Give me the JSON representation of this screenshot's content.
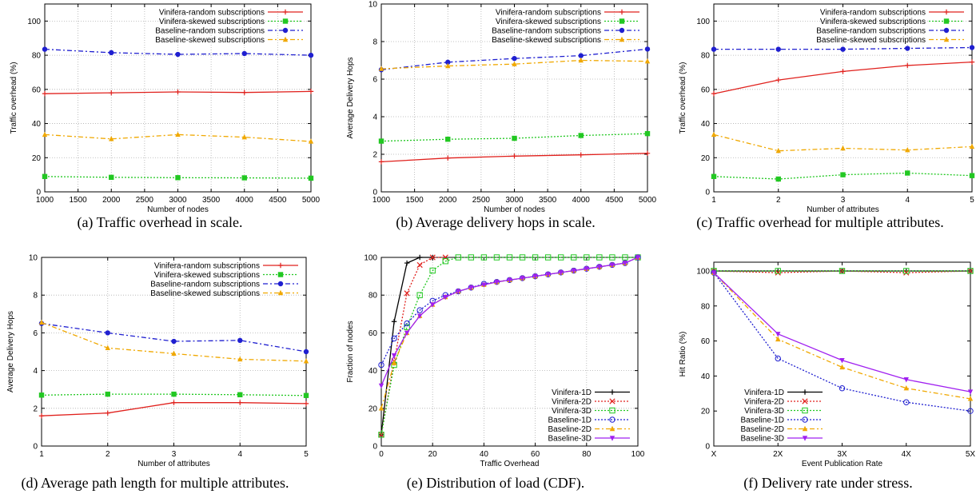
{
  "chart_data": [
    {
      "id": "a",
      "type": "line",
      "caption": "(a) Traffic overhead in scale.",
      "xlabel": "Number of nodes",
      "ylabel": "Traffic overhead (%)",
      "xlim": [
        1000,
        5000
      ],
      "ylim": [
        0,
        110
      ],
      "xticks": [
        1000,
        1500,
        2000,
        2500,
        3000,
        3500,
        4000,
        4500,
        5000
      ],
      "yticks": [
        0,
        20,
        40,
        60,
        80,
        100
      ],
      "xtick_labels": [
        "1000",
        "1500",
        "2000",
        "2500",
        "3000",
        "3500",
        "4000",
        "4500",
        "5000"
      ],
      "ytick_labels": [
        "0",
        "20",
        "40",
        "60",
        "80",
        "100"
      ],
      "grid": true,
      "legend": "top-right",
      "series": [
        {
          "name": "Vinifera-random subscriptions",
          "color": "#e0201c",
          "dash": "",
          "marker": "plus",
          "x": [
            1000,
            2000,
            3000,
            4000,
            5000
          ],
          "y": [
            57.5,
            58.0,
            58.5,
            58.2,
            58.8
          ]
        },
        {
          "name": "Vinifera-skewed subscriptions",
          "color": "#22c822",
          "dash": "2,2",
          "marker": "square",
          "x": [
            1000,
            2000,
            3000,
            4000,
            5000
          ],
          "y": [
            9.0,
            8.5,
            8.3,
            8.2,
            8.0
          ]
        },
        {
          "name": "Baseline-random subscriptions",
          "color": "#1f1fd0",
          "dash": "6,3,2,3",
          "marker": "circle",
          "x": [
            1000,
            2000,
            3000,
            4000,
            5000
          ],
          "y": [
            83.5,
            81.5,
            80.5,
            81.0,
            80.0
          ]
        },
        {
          "name": "Baseline-skewed subscriptions",
          "color": "#f0a800",
          "dash": "6,3,2,3",
          "marker": "triangle",
          "x": [
            1000,
            2000,
            3000,
            4000,
            5000
          ],
          "y": [
            33.5,
            31.0,
            33.5,
            32.0,
            29.5
          ]
        }
      ]
    },
    {
      "id": "b",
      "type": "line",
      "caption": "(b) Average delivery hops in scale.",
      "xlabel": "Number of nodes",
      "ylabel": "Average Delivery Hops",
      "xlim": [
        1000,
        5000
      ],
      "ylim": [
        0,
        10
      ],
      "xticks": [
        1000,
        1500,
        2000,
        2500,
        3000,
        3500,
        4000,
        4500,
        5000
      ],
      "yticks": [
        0,
        2,
        4,
        6,
        8,
        10
      ],
      "xtick_labels": [
        "1000",
        "1500",
        "2000",
        "2500",
        "3000",
        "3500",
        "4000",
        "4500",
        "5000"
      ],
      "ytick_labels": [
        "0",
        "2",
        "4",
        "6",
        "8",
        "10"
      ],
      "grid": true,
      "legend": "top-right",
      "series": [
        {
          "name": "Vinifera-random subscriptions",
          "color": "#e0201c",
          "dash": "",
          "marker": "plus",
          "x": [
            1000,
            2000,
            3000,
            4000,
            5000
          ],
          "y": [
            1.6,
            1.8,
            1.9,
            1.97,
            2.05
          ]
        },
        {
          "name": "Vinifera-skewed subscriptions",
          "color": "#22c822",
          "dash": "2,2",
          "marker": "square",
          "x": [
            1000,
            2000,
            3000,
            4000,
            5000
          ],
          "y": [
            2.7,
            2.8,
            2.85,
            3.0,
            3.1
          ]
        },
        {
          "name": "Baseline-random subscriptions",
          "color": "#1f1fd0",
          "dash": "6,3,2,3",
          "marker": "circle",
          "x": [
            1000,
            2000,
            3000,
            4000,
            5000
          ],
          "y": [
            6.5,
            6.9,
            7.1,
            7.25,
            7.6
          ]
        },
        {
          "name": "Baseline-skewed subscriptions",
          "color": "#f0a800",
          "dash": "6,3,2,3",
          "marker": "triangle",
          "x": [
            1000,
            2000,
            3000,
            4000,
            5000
          ],
          "y": [
            6.55,
            6.7,
            6.8,
            7.0,
            6.95
          ]
        }
      ]
    },
    {
      "id": "c",
      "type": "line",
      "caption": "(c) Traffic overhead for multiple attributes.",
      "xlabel": "Number of attributes",
      "ylabel": "Traffic overhead (%)",
      "xlim": [
        1,
        5
      ],
      "ylim": [
        0,
        110
      ],
      "xticks": [
        1,
        2,
        3,
        4,
        5
      ],
      "yticks": [
        0,
        20,
        40,
        60,
        80,
        100
      ],
      "xtick_labels": [
        "1",
        "2",
        "3",
        "4",
        "5"
      ],
      "ytick_labels": [
        "0",
        "20",
        "40",
        "60",
        "80",
        "100"
      ],
      "grid": true,
      "legend": "top-right",
      "series": [
        {
          "name": "Vinifera-random subscriptions",
          "color": "#e0201c",
          "dash": "",
          "marker": "plus",
          "x": [
            1,
            2,
            3,
            4,
            5
          ],
          "y": [
            57.5,
            65.5,
            70.5,
            74.0,
            76.0
          ]
        },
        {
          "name": "Vinifera-skewed subscriptions",
          "color": "#22c822",
          "dash": "2,2",
          "marker": "square",
          "x": [
            1,
            2,
            3,
            4,
            5
          ],
          "y": [
            9.0,
            7.5,
            10.0,
            11.0,
            9.5
          ]
        },
        {
          "name": "Baseline-random subscriptions",
          "color": "#1f1fd0",
          "dash": "6,3,2,3",
          "marker": "circle",
          "x": [
            1,
            2,
            3,
            4,
            5
          ],
          "y": [
            83.5,
            83.5,
            83.5,
            84.0,
            84.5
          ]
        },
        {
          "name": "Baseline-skewed subscriptions",
          "color": "#f0a800",
          "dash": "6,3,2,3",
          "marker": "triangle",
          "x": [
            1,
            2,
            3,
            4,
            5
          ],
          "y": [
            33.5,
            24.0,
            25.5,
            24.5,
            26.5
          ]
        }
      ]
    },
    {
      "id": "d",
      "type": "line",
      "caption": "(d) Average path length for multiple attributes.",
      "xlabel": "Number of attributes",
      "ylabel": "Average Delivery Hops",
      "xlim": [
        1,
        5
      ],
      "ylim": [
        0,
        10
      ],
      "xticks": [
        1,
        2,
        3,
        4,
        5
      ],
      "yticks": [
        0,
        2,
        4,
        6,
        8,
        10
      ],
      "xtick_labels": [
        "1",
        "2",
        "3",
        "4",
        "5"
      ],
      "ytick_labels": [
        "0",
        "2",
        "4",
        "6",
        "8",
        "10"
      ],
      "grid": true,
      "legend": "top-right",
      "series": [
        {
          "name": "Vinifera-random subscriptions",
          "color": "#e0201c",
          "dash": "",
          "marker": "plus",
          "x": [
            1,
            2,
            3,
            4,
            5
          ],
          "y": [
            1.6,
            1.75,
            2.3,
            2.3,
            2.25
          ]
        },
        {
          "name": "Vinifera-skewed subscriptions",
          "color": "#22c822",
          "dash": "2,2",
          "marker": "square",
          "x": [
            1,
            2,
            3,
            4,
            5
          ],
          "y": [
            2.7,
            2.75,
            2.75,
            2.72,
            2.68
          ]
        },
        {
          "name": "Baseline-random subscriptions",
          "color": "#1f1fd0",
          "dash": "6,3,2,3",
          "marker": "circle",
          "x": [
            1,
            2,
            3,
            4,
            5
          ],
          "y": [
            6.5,
            6.0,
            5.55,
            5.6,
            5.0
          ]
        },
        {
          "name": "Baseline-skewed subscriptions",
          "color": "#f0a800",
          "dash": "6,3,2,3",
          "marker": "triangle",
          "x": [
            1,
            2,
            3,
            4,
            5
          ],
          "y": [
            6.55,
            5.2,
            4.9,
            4.6,
            4.5
          ]
        }
      ]
    },
    {
      "id": "e",
      "type": "line",
      "caption": "(e) Distribution of load (CDF).",
      "xlabel": "Traffic Overhead",
      "ylabel": "Fraction of nodes",
      "xlim": [
        0,
        100
      ],
      "ylim": [
        0,
        100
      ],
      "xticks": [
        0,
        20,
        40,
        60,
        80,
        100
      ],
      "yticks": [
        0,
        20,
        40,
        60,
        80,
        100
      ],
      "xtick_labels": [
        "0",
        "20",
        "40",
        "60",
        "80",
        "100"
      ],
      "ytick_labels": [
        "0",
        "20",
        "40",
        "60",
        "80",
        "100"
      ],
      "grid": true,
      "legend": "bottom-right",
      "series": [
        {
          "name": "Vinifera-1D",
          "color": "#000000",
          "dash": "",
          "marker": "plus",
          "x": [
            0,
            5,
            10,
            15,
            20
          ],
          "y": [
            6,
            66,
            97,
            100,
            100
          ]
        },
        {
          "name": "Vinifera-2D",
          "color": "#e0201c",
          "dash": "2,2",
          "marker": "cross",
          "x": [
            0,
            5,
            10,
            15,
            20,
            25
          ],
          "y": [
            6,
            45,
            81,
            96,
            100,
            100
          ]
        },
        {
          "name": "Vinifera-3D",
          "color": "#22c822",
          "dash": "2,2",
          "marker": "hollow-square",
          "x": [
            0,
            5,
            10,
            15,
            20,
            25,
            30,
            35,
            40,
            45,
            50,
            55,
            60,
            65,
            70,
            75,
            80,
            85,
            90,
            95,
            100
          ],
          "y": [
            6,
            43,
            63,
            80,
            93,
            98,
            100,
            100,
            100,
            100,
            100,
            100,
            100,
            100,
            100,
            100,
            100,
            100,
            100,
            100,
            100
          ]
        },
        {
          "name": "Baseline-1D",
          "color": "#1f1fd0",
          "dash": "2,2",
          "marker": "circle-open",
          "x": [
            0,
            5,
            10,
            15,
            20,
            25,
            30,
            35,
            40,
            45,
            50,
            55,
            60,
            65,
            70,
            75,
            80,
            85,
            90,
            95,
            100
          ],
          "y": [
            43,
            57,
            65,
            72,
            77,
            80,
            82,
            84,
            86,
            87,
            88,
            89,
            90,
            91,
            92,
            93,
            94,
            95,
            96,
            97,
            100
          ]
        },
        {
          "name": "Baseline-2D",
          "color": "#f0a800",
          "dash": "6,3,2,3",
          "marker": "triangle",
          "x": [
            0,
            5,
            10,
            15,
            20,
            25,
            30,
            35,
            40,
            45,
            50,
            55,
            60,
            65,
            70,
            75,
            80,
            85,
            90,
            95,
            100
          ],
          "y": [
            20,
            44,
            60,
            69,
            75,
            79,
            82,
            84,
            85.5,
            87,
            88,
            89,
            90,
            91,
            92,
            93,
            94,
            95,
            96,
            97,
            100
          ]
        },
        {
          "name": "Baseline-3D",
          "color": "#a020f0",
          "dash": "",
          "marker": "triangle-down",
          "x": [
            0,
            5,
            10,
            15,
            20,
            25,
            30,
            35,
            40,
            45,
            50,
            55,
            60,
            65,
            70,
            75,
            80,
            85,
            90,
            95,
            100
          ],
          "y": [
            32,
            48,
            60,
            69,
            75,
            79,
            82,
            84,
            85.5,
            87,
            88,
            89,
            90,
            91,
            92,
            93,
            94,
            95,
            96,
            97,
            100
          ]
        }
      ]
    },
    {
      "id": "f",
      "type": "line",
      "caption": "(f) Delivery rate under stress.",
      "xlabel": "Event Publication Rate",
      "ylabel": "Hit Ratio (%)",
      "xlim": [
        1,
        5
      ],
      "ylim": [
        0,
        105
      ],
      "xticks": [
        1,
        2,
        3,
        4,
        5
      ],
      "yticks": [
        0,
        20,
        40,
        60,
        80,
        100
      ],
      "xtick_labels": [
        "X",
        "2X",
        "3X",
        "4X",
        "5X"
      ],
      "ytick_labels": [
        "0",
        "20",
        "40",
        "60",
        "80",
        "100"
      ],
      "grid": false,
      "legend": "bottom-left",
      "series": [
        {
          "name": "Vinifera-1D",
          "color": "#000000",
          "dash": "",
          "marker": "plus",
          "x": [
            1,
            2,
            3,
            4,
            5
          ],
          "y": [
            100,
            100,
            100,
            100,
            100
          ]
        },
        {
          "name": "Vinifera-2D",
          "color": "#e0201c",
          "dash": "2,2",
          "marker": "cross",
          "x": [
            1,
            2,
            3,
            4,
            5
          ],
          "y": [
            100,
            99,
            100,
            99,
            100
          ]
        },
        {
          "name": "Vinifera-3D",
          "color": "#22c822",
          "dash": "2,2",
          "marker": "hollow-square",
          "x": [
            1,
            2,
            3,
            4,
            5
          ],
          "y": [
            100,
            100,
            100,
            100,
            100
          ]
        },
        {
          "name": "Baseline-1D",
          "color": "#1f1fd0",
          "dash": "2,2",
          "marker": "circle-open",
          "x": [
            1,
            2,
            3,
            4,
            5
          ],
          "y": [
            99,
            50,
            33,
            25,
            20
          ]
        },
        {
          "name": "Baseline-2D",
          "color": "#f0a800",
          "dash": "6,3,2,3",
          "marker": "triangle",
          "x": [
            1,
            2,
            3,
            4,
            5
          ],
          "y": [
            99,
            61,
            45,
            33,
            27
          ]
        },
        {
          "name": "Baseline-3D",
          "color": "#a020f0",
          "dash": "",
          "marker": "triangle-down",
          "x": [
            1,
            2,
            3,
            4,
            5
          ],
          "y": [
            99,
            64,
            49,
            38,
            31
          ]
        }
      ]
    }
  ]
}
